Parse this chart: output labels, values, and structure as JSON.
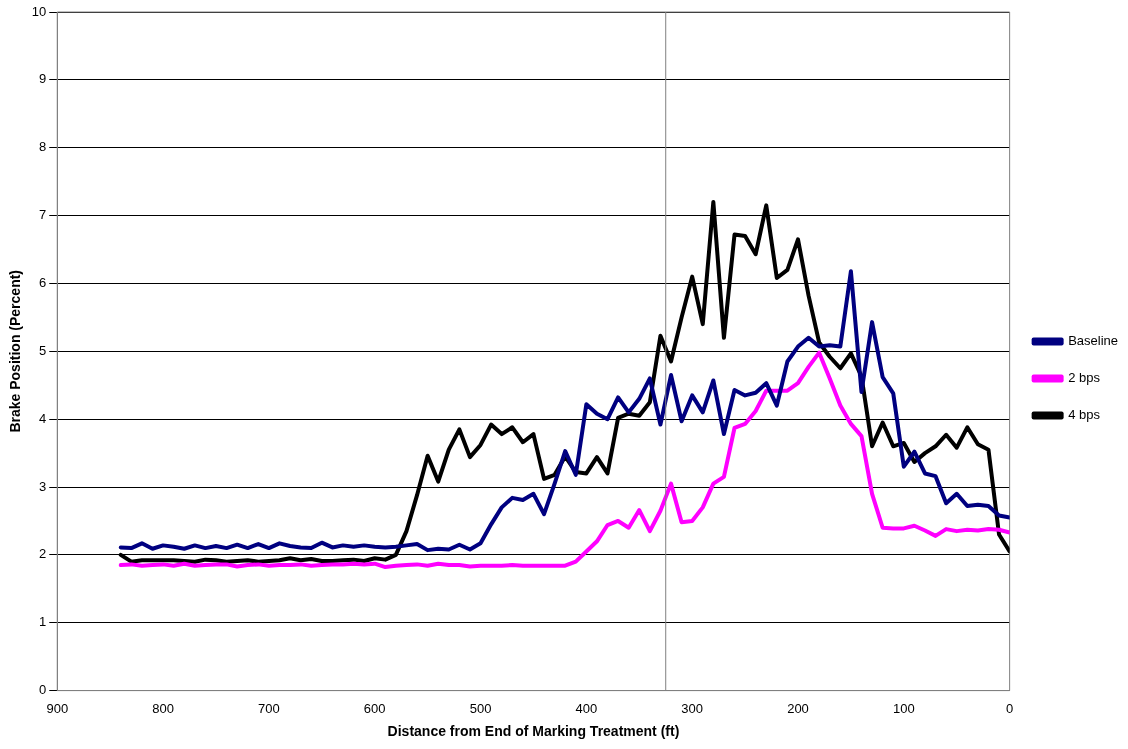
{
  "chart_data": {
    "type": "line",
    "xlabel": "Distance from End of Marking Treatment (ft)",
    "ylabel": "Brake Position (Percent)",
    "x": [
      840,
      830,
      820,
      810,
      800,
      790,
      780,
      770,
      760,
      750,
      740,
      730,
      720,
      710,
      700,
      690,
      680,
      670,
      660,
      650,
      640,
      630,
      620,
      610,
      600,
      590,
      580,
      570,
      560,
      550,
      540,
      530,
      520,
      510,
      500,
      490,
      480,
      470,
      460,
      450,
      440,
      430,
      420,
      410,
      400,
      390,
      380,
      370,
      360,
      350,
      340,
      330,
      320,
      310,
      300,
      290,
      280,
      270,
      260,
      250,
      240,
      230,
      220,
      210,
      200,
      190,
      180,
      170,
      160,
      150,
      140,
      130,
      120,
      110,
      100,
      90,
      80,
      70,
      60,
      50,
      40,
      30,
      20,
      10,
      0
    ],
    "series": [
      {
        "name": "Baseline",
        "color": "#000080",
        "values": [
          2.11,
          2.1,
          2.17,
          2.09,
          2.14,
          2.12,
          2.09,
          2.14,
          2.1,
          2.13,
          2.1,
          2.15,
          2.1,
          2.16,
          2.1,
          2.17,
          2.13,
          2.11,
          2.1,
          2.18,
          2.11,
          2.14,
          2.12,
          2.14,
          2.12,
          2.11,
          2.12,
          2.14,
          2.16,
          2.07,
          2.09,
          2.08,
          2.15,
          2.08,
          2.17,
          2.45,
          2.7,
          2.84,
          2.81,
          2.9,
          2.6,
          3.05,
          3.53,
          3.18,
          4.22,
          4.08,
          4.0,
          4.32,
          4.1,
          4.3,
          4.6,
          3.92,
          4.65,
          3.97,
          4.35,
          4.1,
          4.57,
          3.78,
          4.43,
          4.35,
          4.39,
          4.53,
          4.2,
          4.85,
          5.07,
          5.2,
          5.07,
          5.09,
          5.07,
          6.18,
          4.4,
          5.43,
          4.62,
          4.38,
          3.3,
          3.52,
          3.2,
          3.16,
          2.76,
          2.9,
          2.72,
          2.74,
          2.72,
          2.58,
          2.55
        ]
      },
      {
        "name": "2 bps",
        "color": "#ff00ff",
        "values": [
          1.85,
          1.86,
          1.84,
          1.85,
          1.86,
          1.84,
          1.87,
          1.84,
          1.85,
          1.86,
          1.86,
          1.83,
          1.85,
          1.86,
          1.84,
          1.85,
          1.85,
          1.86,
          1.84,
          1.85,
          1.86,
          1.86,
          1.87,
          1.86,
          1.87,
          1.82,
          1.84,
          1.85,
          1.86,
          1.84,
          1.87,
          1.85,
          1.85,
          1.83,
          1.84,
          1.84,
          1.84,
          1.85,
          1.84,
          1.84,
          1.84,
          1.84,
          1.84,
          1.9,
          2.05,
          2.2,
          2.44,
          2.5,
          2.4,
          2.66,
          2.35,
          2.65,
          3.05,
          2.48,
          2.5,
          2.7,
          3.05,
          3.15,
          3.87,
          3.93,
          4.12,
          4.42,
          4.42,
          4.42,
          4.53,
          4.77,
          4.98,
          4.6,
          4.2,
          3.93,
          3.75,
          2.9,
          2.4,
          2.39,
          2.39,
          2.43,
          2.36,
          2.28,
          2.38,
          2.35,
          2.37,
          2.36,
          2.38,
          2.37,
          2.33
        ]
      },
      {
        "name": "4 bps",
        "color": "#000000",
        "values": [
          2.0,
          1.9,
          1.92,
          1.92,
          1.92,
          1.92,
          1.91,
          1.9,
          1.93,
          1.92,
          1.9,
          1.91,
          1.92,
          1.9,
          1.91,
          1.92,
          1.95,
          1.92,
          1.94,
          1.91,
          1.91,
          1.92,
          1.93,
          1.91,
          1.95,
          1.93,
          2.0,
          2.35,
          2.88,
          3.46,
          3.08,
          3.55,
          3.85,
          3.44,
          3.62,
          3.92,
          3.78,
          3.88,
          3.66,
          3.78,
          3.12,
          3.18,
          3.45,
          3.22,
          3.2,
          3.44,
          3.2,
          4.02,
          4.08,
          4.05,
          4.25,
          5.23,
          4.85,
          5.5,
          6.1,
          5.4,
          7.2,
          5.2,
          6.72,
          6.7,
          6.43,
          7.15,
          6.08,
          6.2,
          6.65,
          5.82,
          5.13,
          4.92,
          4.75,
          4.97,
          4.63,
          3.6,
          3.95,
          3.6,
          3.65,
          3.37,
          3.5,
          3.6,
          3.77,
          3.58,
          3.88,
          3.63,
          3.55,
          2.3,
          2.05
        ]
      }
    ],
    "xlim": [
      900,
      0
    ],
    "xticks": [
      900,
      800,
      700,
      600,
      500,
      400,
      300,
      200,
      100,
      0
    ],
    "ylim": [
      0,
      10
    ],
    "yticks": [
      0,
      1,
      2,
      3,
      4,
      5,
      6,
      7,
      8,
      9,
      10
    ],
    "grid": "y",
    "legend": "right",
    "marker": "none",
    "line_style": "solid",
    "ref_lines": [
      {
        "axis": "x",
        "value": 325,
        "color": "#808080"
      }
    ]
  }
}
